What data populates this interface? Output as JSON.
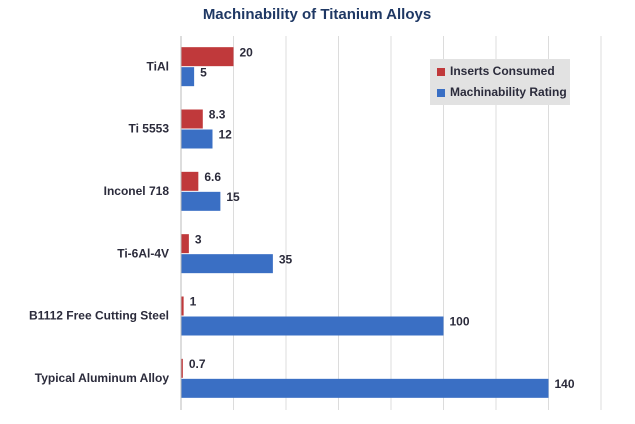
{
  "chart_data": {
    "type": "hbar",
    "title": "Machinability of Titanium Alloys",
    "categories": [
      "TiAl",
      "Ti 5553",
      "Inconel 718",
      "Ti-6Al-4V",
      "B1112 Free Cutting Steel",
      "Typical Aluminum Alloy"
    ],
    "series": [
      {
        "name": "Inserts Consumed",
        "color": "#c0393b",
        "values": [
          20,
          8.3,
          6.6,
          3,
          1,
          0.7
        ]
      },
      {
        "name": "Machinability Rating",
        "color": "#3a6fc4",
        "values": [
          5,
          12,
          15,
          35,
          100,
          140
        ]
      }
    ],
    "xlim": [
      0,
      160
    ],
    "xticks": [
      0,
      20,
      40,
      60,
      80,
      100,
      120,
      140,
      160
    ],
    "grid": true,
    "legend": "top-right"
  }
}
